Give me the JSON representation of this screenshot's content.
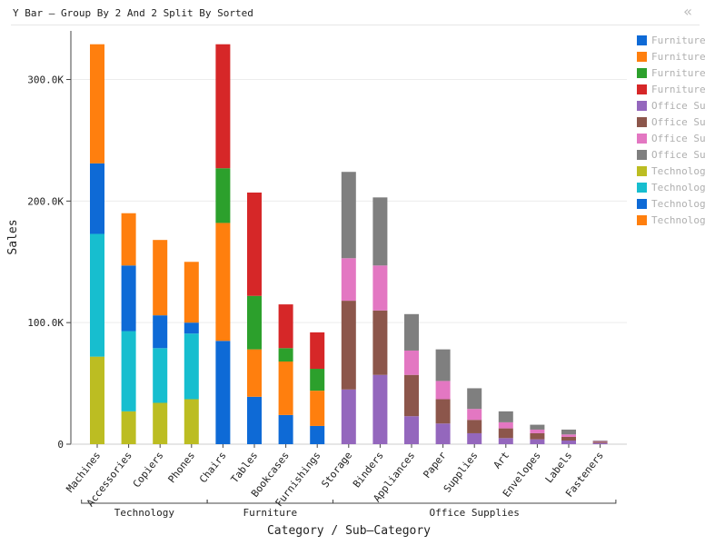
{
  "header": {
    "title": "Y Bar – Group By 2 And 2 Split By Sorted",
    "collapse_icon": "«"
  },
  "colors": {
    "Furniture - Bookcases": "#2ca02c",
    "Furniture - Chairs": "#ff7f0e",
    "Furniture - Furnishings": "#d62728",
    "Furniture - Tables": "#0e6ad6",
    "Office Supplies - Appliances": "#9467bd",
    "Office Supplies - Art": "#8c564b",
    "Office Supplies - Binders": "#e377c2",
    "Office Supplies - Envelopes": "#7f7f7f",
    "Technology - Accessories": "#bcbd22",
    "Technology - Copiers": "#17becf",
    "Technology - Machines": "#0e6ad6",
    "Technology - Phones": "#ff7f0e"
  },
  "chart_data": {
    "type": "bar",
    "stacked": true,
    "xlabel": "Category / Sub–Category",
    "ylabel": "Sales",
    "ylim": [
      0,
      340000
    ],
    "yticks": [
      0,
      100000,
      200000,
      300000
    ],
    "ytick_labels": [
      "0",
      "100.0K",
      "200.0K",
      "300.0K"
    ],
    "groups": [
      {
        "name": "Technology",
        "categories": [
          "Machines",
          "Accessories",
          "Copiers",
          "Phones"
        ]
      },
      {
        "name": "Furniture",
        "categories": [
          "Chairs",
          "Tables",
          "Bookcases",
          "Furnishings"
        ]
      },
      {
        "name": "Office Supplies",
        "categories": [
          "Storage",
          "Binders",
          "Appliances",
          "Paper",
          "Supplies",
          "Art",
          "Envelopes",
          "Labels",
          "Fasteners"
        ]
      }
    ],
    "categories": [
      "Machines",
      "Accessories",
      "Copiers",
      "Phones",
      "Chairs",
      "Tables",
      "Bookcases",
      "Furnishings",
      "Storage",
      "Binders",
      "Appliances",
      "Paper",
      "Supplies",
      "Art",
      "Envelopes",
      "Labels",
      "Fasteners"
    ],
    "legend": [
      {
        "label": "Furniture - Tables",
        "color": "#0e6ad6"
      },
      {
        "label": "Furniture - Chairs",
        "color": "#ff7f0e"
      },
      {
        "label": "Furniture - Bookcases",
        "color": "#2ca02c"
      },
      {
        "label": "Furniture - Furnishings",
        "color": "#d62728"
      },
      {
        "label": "Office Supplies - Appliances",
        "color": "#9467bd"
      },
      {
        "label": "Office Supplies - Art",
        "color": "#8c564b"
      },
      {
        "label": "Office Supplies - Binders",
        "color": "#e377c2"
      },
      {
        "label": "Office Supplies - Envelopes",
        "color": "#7f7f7f"
      },
      {
        "label": "Technology - Accessories",
        "color": "#bcbd22"
      },
      {
        "label": "Technology - Copiers",
        "color": "#17becf"
      },
      {
        "label": "Technology - Machines",
        "color": "#0e6ad6"
      },
      {
        "label": "Technology - Phones",
        "color": "#ff7f0e"
      }
    ],
    "stacks": [
      [
        {
          "v": 72000,
          "c": "#bcbd22"
        },
        {
          "v": 101000,
          "c": "#17becf"
        },
        {
          "v": 58000,
          "c": "#0e6ad6"
        },
        {
          "v": 98000,
          "c": "#ff7f0e"
        }
      ],
      [
        {
          "v": 27000,
          "c": "#bcbd22"
        },
        {
          "v": 66000,
          "c": "#17becf"
        },
        {
          "v": 54000,
          "c": "#0e6ad6"
        },
        {
          "v": 43000,
          "c": "#ff7f0e"
        }
      ],
      [
        {
          "v": 34000,
          "c": "#bcbd22"
        },
        {
          "v": 45000,
          "c": "#17becf"
        },
        {
          "v": 27000,
          "c": "#0e6ad6"
        },
        {
          "v": 62000,
          "c": "#ff7f0e"
        }
      ],
      [
        {
          "v": 37000,
          "c": "#bcbd22"
        },
        {
          "v": 54000,
          "c": "#17becf"
        },
        {
          "v": 9000,
          "c": "#0e6ad6"
        },
        {
          "v": 50000,
          "c": "#ff7f0e"
        }
      ],
      [
        {
          "v": 85000,
          "c": "#0e6ad6"
        },
        {
          "v": 97000,
          "c": "#ff7f0e"
        },
        {
          "v": 45000,
          "c": "#2ca02c"
        },
        {
          "v": 102000,
          "c": "#d62728"
        }
      ],
      [
        {
          "v": 39000,
          "c": "#0e6ad6"
        },
        {
          "v": 39000,
          "c": "#ff7f0e"
        },
        {
          "v": 44000,
          "c": "#2ca02c"
        },
        {
          "v": 85000,
          "c": "#d62728"
        }
      ],
      [
        {
          "v": 24000,
          "c": "#0e6ad6"
        },
        {
          "v": 44000,
          "c": "#ff7f0e"
        },
        {
          "v": 11000,
          "c": "#2ca02c"
        },
        {
          "v": 36000,
          "c": "#d62728"
        }
      ],
      [
        {
          "v": 15000,
          "c": "#0e6ad6"
        },
        {
          "v": 29000,
          "c": "#ff7f0e"
        },
        {
          "v": 18000,
          "c": "#2ca02c"
        },
        {
          "v": 30000,
          "c": "#d62728"
        }
      ],
      [
        {
          "v": 45000,
          "c": "#9467bd"
        },
        {
          "v": 73000,
          "c": "#8c564b"
        },
        {
          "v": 35000,
          "c": "#e377c2"
        },
        {
          "v": 71000,
          "c": "#7f7f7f"
        }
      ],
      [
        {
          "v": 57000,
          "c": "#9467bd"
        },
        {
          "v": 53000,
          "c": "#8c564b"
        },
        {
          "v": 37000,
          "c": "#e377c2"
        },
        {
          "v": 56000,
          "c": "#7f7f7f"
        }
      ],
      [
        {
          "v": 23000,
          "c": "#9467bd"
        },
        {
          "v": 34000,
          "c": "#8c564b"
        },
        {
          "v": 20000,
          "c": "#e377c2"
        },
        {
          "v": 30000,
          "c": "#7f7f7f"
        }
      ],
      [
        {
          "v": 17000,
          "c": "#9467bd"
        },
        {
          "v": 20000,
          "c": "#8c564b"
        },
        {
          "v": 15000,
          "c": "#e377c2"
        },
        {
          "v": 26000,
          "c": "#7f7f7f"
        }
      ],
      [
        {
          "v": 9000,
          "c": "#9467bd"
        },
        {
          "v": 11000,
          "c": "#8c564b"
        },
        {
          "v": 9000,
          "c": "#e377c2"
        },
        {
          "v": 17000,
          "c": "#7f7f7f"
        }
      ],
      [
        {
          "v": 5000,
          "c": "#9467bd"
        },
        {
          "v": 8000,
          "c": "#8c564b"
        },
        {
          "v": 5000,
          "c": "#e377c2"
        },
        {
          "v": 9000,
          "c": "#7f7f7f"
        }
      ],
      [
        {
          "v": 4000,
          "c": "#9467bd"
        },
        {
          "v": 5000,
          "c": "#8c564b"
        },
        {
          "v": 3000,
          "c": "#e377c2"
        },
        {
          "v": 4000,
          "c": "#7f7f7f"
        }
      ],
      [
        {
          "v": 3000,
          "c": "#9467bd"
        },
        {
          "v": 3000,
          "c": "#8c564b"
        },
        {
          "v": 2000,
          "c": "#e377c2"
        },
        {
          "v": 4000,
          "c": "#7f7f7f"
        }
      ],
      [
        {
          "v": 1000,
          "c": "#9467bd"
        },
        {
          "v": 1000,
          "c": "#8c564b"
        },
        {
          "v": 500,
          "c": "#e377c2"
        },
        {
          "v": 500,
          "c": "#7f7f7f"
        }
      ]
    ]
  }
}
